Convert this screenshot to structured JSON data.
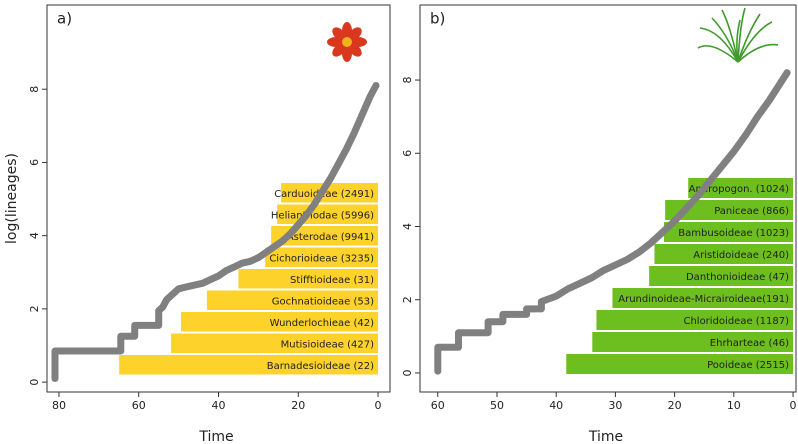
{
  "chart_data": [
    {
      "type": "line",
      "panel_label": "a)",
      "xlabel": "Time",
      "ylabel": "log(lineages)",
      "xlim": [
        83,
        -3
      ],
      "ylim": [
        -0.27,
        10.3
      ],
      "xticks": [
        80,
        60,
        40,
        20,
        0
      ],
      "yticks": [
        0,
        2,
        4,
        6,
        8
      ],
      "line_color": "#808080",
      "x": [
        81,
        81,
        64.5,
        64.5,
        61,
        61,
        55,
        55,
        54,
        53,
        52,
        51,
        50,
        48,
        46,
        44,
        42,
        40,
        38,
        36,
        34,
        32,
        30,
        28,
        26,
        24,
        22,
        20,
        18,
        16,
        14,
        12,
        10,
        8,
        6,
        4,
        2,
        0.5
      ],
      "values": [
        0.1,
        0.85,
        0.85,
        1.25,
        1.25,
        1.55,
        1.55,
        1.95,
        2.05,
        2.25,
        2.35,
        2.45,
        2.55,
        2.6,
        2.65,
        2.7,
        2.8,
        2.9,
        3.05,
        3.15,
        3.25,
        3.3,
        3.4,
        3.55,
        3.7,
        3.85,
        4.05,
        4.3,
        4.55,
        4.85,
        5.2,
        5.55,
        5.95,
        6.35,
        6.8,
        7.3,
        7.8,
        8.1
      ],
      "bars": {
        "color": "#fdd22b",
        "labels": [
          "Carduoideae (2491)",
          "Helianthodae  (5996)",
          "Asterodae (9941)",
          "Cichorioideae (3235)",
          "Stifftioideae (31)",
          "Gochnatioideae (53)",
          "Wunderlochieae (42)",
          "Mutisioideae (427)",
          "Barnadesioideae (22)"
        ],
        "values": [
          24.3,
          25.3,
          26.8,
          28.3,
          35,
          42.9,
          49.4,
          51.9,
          64.9
        ]
      }
    },
    {
      "type": "line",
      "panel_label": "b)",
      "xlabel": "Time",
      "xlim": [
        63,
        -0.5
      ],
      "ylim": [
        -0.52,
        10.05
      ],
      "xticks": [
        60,
        50,
        40,
        30,
        20,
        10,
        0
      ],
      "yticks": [
        0,
        2,
        4,
        6,
        8
      ],
      "line_color": "#808080",
      "x": [
        60,
        60,
        56.5,
        56.5,
        51.5,
        51.5,
        49,
        49,
        45,
        45,
        42.5,
        42.5,
        40,
        38,
        36,
        34,
        32,
        30,
        28,
        26,
        24,
        22,
        20,
        18,
        16,
        14,
        12,
        10,
        8,
        6,
        4,
        2,
        1
      ],
      "values": [
        0.05,
        0.7,
        0.7,
        1.1,
        1.1,
        1.4,
        1.4,
        1.6,
        1.6,
        1.75,
        1.75,
        1.95,
        2.1,
        2.3,
        2.45,
        2.6,
        2.8,
        2.95,
        3.1,
        3.3,
        3.55,
        3.85,
        4.15,
        4.5,
        4.85,
        5.25,
        5.65,
        6.05,
        6.5,
        7.0,
        7.45,
        7.95,
        8.2
      ],
      "bars": {
        "color": "#6cbf1e",
        "labels": [
          "Andropogon. (1024)",
          "Paniceae (866)",
          "Bambusoideae (1023)",
          "Aristidoideae (240)",
          "Danthonioideae (47)",
          "Arundinoideae-Micrairoideae(191)",
          "Chloridoideae (1187)",
          "Ehrharteae (46)",
          "Pooideae (2515)"
        ],
        "values": [
          17.7,
          21.6,
          21.8,
          23.4,
          24.3,
          30.5,
          33.2,
          33.9,
          38.3
        ]
      }
    }
  ]
}
